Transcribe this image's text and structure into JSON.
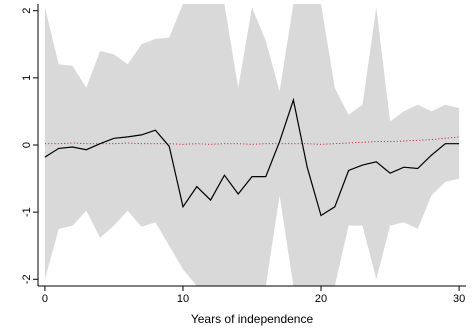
{
  "chart_data": {
    "type": "line",
    "title": "",
    "xlabel": "Years of independence",
    "ylabel": "",
    "xlim": [
      -0.5,
      30.5
    ],
    "ylim": [
      -2.1,
      2.1
    ],
    "x_ticks": [
      0,
      10,
      20,
      30
    ],
    "y_ticks": [
      2,
      1,
      0,
      -1,
      -2
    ],
    "grid": false,
    "legend": "none",
    "x": [
      0,
      1,
      2,
      3,
      4,
      5,
      6,
      7,
      8,
      9,
      10,
      11,
      12,
      13,
      14,
      15,
      16,
      17,
      18,
      19,
      20,
      21,
      22,
      23,
      24,
      25,
      26,
      27,
      28,
      29,
      30
    ],
    "series": [
      {
        "role": "upper_bound",
        "values": [
          2.05,
          1.2,
          1.18,
          0.85,
          1.4,
          1.35,
          1.2,
          1.5,
          1.58,
          1.6,
          2.1,
          2.1,
          2.1,
          2.1,
          0.85,
          2.05,
          1.55,
          0.8,
          2.1,
          2.1,
          2.1,
          0.85,
          0.45,
          0.6,
          2.05,
          0.35,
          0.5,
          0.6,
          0.5,
          0.6,
          0.55
        ]
      },
      {
        "role": "lower_bound",
        "values": [
          -2.0,
          -1.25,
          -1.2,
          -0.98,
          -1.38,
          -1.2,
          -0.98,
          -1.22,
          -1.15,
          -1.5,
          -1.85,
          -2.1,
          -2.1,
          -2.1,
          -2.1,
          -2.1,
          -2.1,
          -0.75,
          -2.1,
          -2.1,
          -2.1,
          -2.1,
          -1.2,
          -1.2,
          -2.0,
          -1.2,
          -1.15,
          -1.25,
          -0.75,
          -0.55,
          -0.5
        ]
      },
      {
        "role": "estimate",
        "values": [
          -0.18,
          -0.05,
          -0.03,
          -0.07,
          0.02,
          0.1,
          0.12,
          0.15,
          0.22,
          -0.02,
          -0.92,
          -0.62,
          -0.82,
          -0.45,
          -0.73,
          -0.47,
          -0.47,
          0.05,
          0.67,
          -0.33,
          -1.05,
          -0.92,
          -0.38,
          -0.3,
          -0.25,
          -0.42,
          -0.33,
          -0.35,
          -0.15,
          0.02,
          0.02
        ]
      },
      {
        "role": "baseline",
        "values": [
          0.02,
          0.02,
          0.03,
          0.02,
          0.02,
          0.02,
          0.03,
          0.02,
          0.02,
          0.02,
          0.01,
          0.02,
          0.01,
          0.02,
          0.02,
          0.01,
          0.02,
          0.02,
          0.02,
          0.02,
          0.01,
          0.02,
          0.03,
          0.04,
          0.05,
          0.05,
          0.06,
          0.07,
          0.08,
          0.1,
          0.12
        ]
      }
    ],
    "colors": {
      "band": "#d9d9d9",
      "estimate": "#000000",
      "baseline": "#c8203c",
      "axis": "#000000"
    }
  }
}
